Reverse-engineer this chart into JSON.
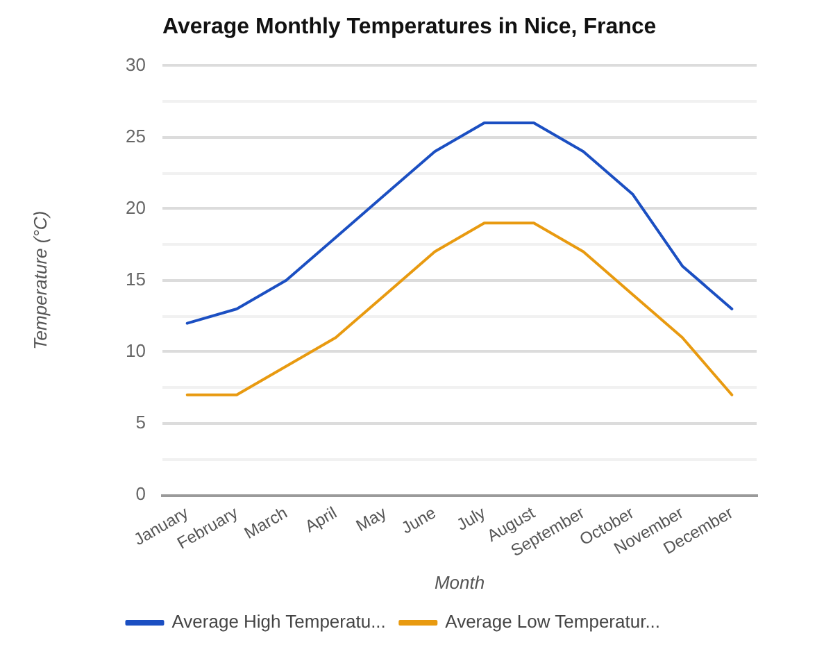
{
  "chart_data": {
    "type": "line",
    "title": "Average Monthly Temperatures in Nice, France",
    "xlabel": "Month",
    "ylabel": "Temperature (°C)",
    "categories": [
      "January",
      "February",
      "March",
      "April",
      "May",
      "June",
      "July",
      "August",
      "September",
      "October",
      "November",
      "December"
    ],
    "series": [
      {
        "name": "Average High Temperatu...",
        "color": "#1b4fc2",
        "values": [
          12,
          13,
          15,
          18,
          21,
          24,
          26,
          26,
          24,
          21,
          16,
          13
        ]
      },
      {
        "name": "Average Low Temperatur...",
        "color": "#e89a10",
        "values": [
          7,
          7,
          9,
          11,
          14,
          17,
          19,
          19,
          17,
          14,
          11,
          7
        ]
      }
    ],
    "ylim": [
      0,
      30
    ],
    "yticks": [
      0,
      {
        "value": 2.5,
        "label": null
      },
      5,
      {
        "value": 7.5,
        "label": null
      },
      10,
      {
        "value": 12.5,
        "label": null
      },
      15,
      {
        "value": 17.5,
        "label": null
      },
      20,
      {
        "value": 22.5,
        "label": null
      },
      25,
      {
        "value": 27.5,
        "label": null
      },
      30
    ],
    "grid": "y",
    "legend": "bottom",
    "marker": "none",
    "line_style": "solid"
  }
}
